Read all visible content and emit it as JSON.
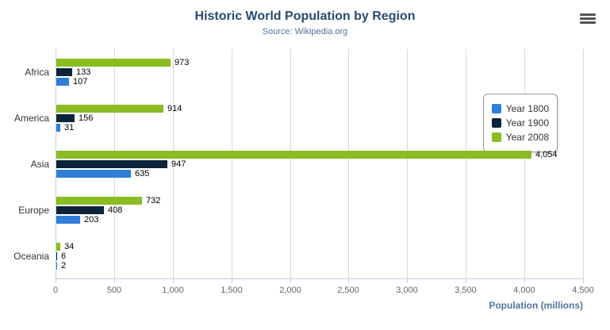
{
  "header": {
    "title": "Historic World Population by Region",
    "subtitle": "Source: Wikipedia.org"
  },
  "chart_data": {
    "type": "bar",
    "orientation": "horizontal",
    "title": "Historic World Population by Region",
    "subtitle": "Source: Wikipedia.org",
    "categories": [
      "Africa",
      "America",
      "Asia",
      "Europe",
      "Oceania"
    ],
    "series": [
      {
        "name": "Year 1800",
        "color": "#2f7ed8",
        "values": [
          107,
          31,
          635,
          203,
          2
        ]
      },
      {
        "name": "Year 1900",
        "color": "#0d233a",
        "values": [
          133,
          156,
          947,
          408,
          6
        ]
      },
      {
        "name": "Year 2008",
        "color": "#8bbc21",
        "values": [
          973,
          914,
          4054,
          732,
          34
        ]
      }
    ],
    "bar_display_order_top_to_bottom": [
      "Year 2008",
      "Year 1900",
      "Year 1800"
    ],
    "data_labels": true,
    "xlabel": "Population (millions)",
    "ylabel": "",
    "xlim": [
      0,
      4500
    ],
    "x_tick_values": [
      0,
      500,
      1000,
      1500,
      2000,
      2500,
      3000,
      3500,
      4000,
      4500
    ],
    "x_tick_labels": [
      "0",
      "500",
      "1,000",
      "1,500",
      "2,000",
      "2,500",
      "3,000",
      "3,500",
      "4,000",
      "4,500"
    ],
    "grid": "vertical-gridlines-on",
    "legend_position": "right-floating"
  }
}
